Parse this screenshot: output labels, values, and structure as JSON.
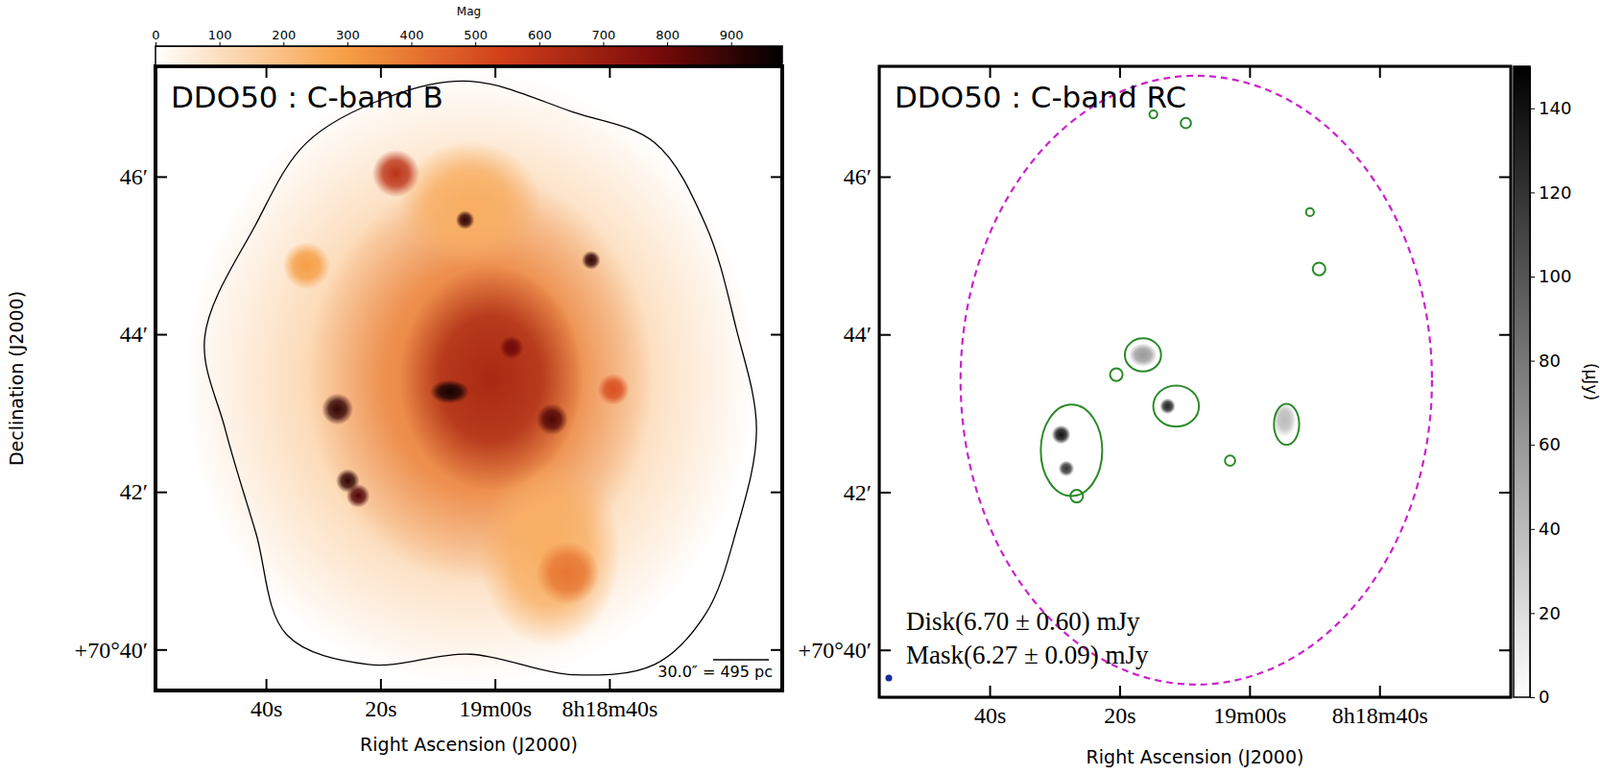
{
  "chart_data": [
    {
      "type": "image",
      "title": "DDO50 : C-band B",
      "x_label": "Right Ascension (J2000)",
      "y_label": "Declination (J2000)",
      "xlim": [
        119.3,
        9.8
      ],
      "xticks": [
        {
          "value": 100,
          "label": "40s"
        },
        {
          "value": 80,
          "label": "20s"
        },
        {
          "value": 60,
          "label": "19m00s"
        },
        {
          "value": 40,
          "label": "8h18m40s"
        }
      ],
      "ylim": [
        39.48,
        47.4
      ],
      "yticks": [
        {
          "value": 46,
          "label": "46′"
        },
        {
          "value": 44,
          "label": "44′"
        },
        {
          "value": 42,
          "label": "42′"
        },
        {
          "value": 40,
          "label": "+70°40′"
        }
      ],
      "colorbar": {
        "label": "Mag",
        "range": [
          0,
          980
        ],
        "ticks": [
          0,
          100,
          200,
          300,
          400,
          500,
          600,
          700,
          800,
          900
        ]
      },
      "sources": {
        "x": [
          64.3,
          62.5,
          64.3,
          50.4,
          60.7,
          67.9,
          87.5,
          85.7,
          83.9,
          65.2,
          43.2,
          50,
          57.1,
          47.3,
          77.3,
          92.9,
          39.3
        ],
        "y": [
          43.44,
          43.44,
          45.65,
          41.23,
          43.44,
          43.27,
          43.05,
          42.14,
          41.95,
          45.45,
          44.94,
          42.92,
          43.83,
          40.97,
          46.04,
          44.87,
          43.3
        ],
        "values": [
          150,
          380,
          250,
          250,
          650,
          950,
          900,
          900,
          850,
          900,
          900,
          850,
          800,
          400,
          600,
          300,
          500
        ],
        "rx": [
          3.64,
          2.2,
          0.9,
          0.9,
          1.17,
          0.25,
          0.2,
          0.15,
          0.15,
          0.12,
          0.12,
          0.2,
          0.15,
          0.4,
          0.3,
          0.3,
          0.2
        ],
        "ry": [
          3.9,
          2.6,
          0.8,
          1.2,
          1.43,
          0.15,
          0.2,
          0.15,
          0.15,
          0.12,
          0.12,
          0.2,
          0.15,
          0.4,
          0.3,
          0.3,
          0.2
        ]
      },
      "contour": {
        "x": [
          64.3,
          46.4,
          32.1,
          23.2,
          17.9,
          14.3,
          17.9,
          23.2,
          32.1,
          46.4,
          64.3,
          82.1,
          96.4,
          101.8,
          107.1,
          110.7,
          101.8,
          92.9,
          78.6
        ],
        "y": [
          47.21,
          46.82,
          46.43,
          45.39,
          44.09,
          42.79,
          41.49,
          40.45,
          39.81,
          39.68,
          39.94,
          39.81,
          40.19,
          41.49,
          42.79,
          43.96,
          45.39,
          46.43,
          47.01
        ]
      },
      "annotations": [
        "30.0″ = 495 pc"
      ]
    },
    {
      "type": "image",
      "title": "DDO50 : C-band RC",
      "x_label": "Right Ascension (J2000)",
      "xlim": [
        117,
        19.8
      ],
      "xticks": [
        {
          "value": 100,
          "label": "40s"
        },
        {
          "value": 80,
          "label": "20s"
        },
        {
          "value": 60,
          "label": "19m00s"
        },
        {
          "value": 40,
          "label": "8h18m40s"
        }
      ],
      "ylim": [
        39.4,
        47.4
      ],
      "yticks": [
        {
          "value": 46,
          "label": "46′"
        },
        {
          "value": 44,
          "label": "44′"
        },
        {
          "value": 42,
          "label": "42′"
        },
        {
          "value": 40,
          "label": "+70°40′"
        }
      ],
      "colorbar": {
        "label": "(μJy)",
        "range": [
          0,
          150
        ],
        "ticks": [
          0,
          20,
          40,
          60,
          80,
          100,
          120,
          140
        ]
      },
      "sources": {
        "x": [
          89,
          88.2,
          72.6,
          76.4,
          54.6
        ],
        "y": [
          42.73,
          42.3,
          43.09,
          43.74,
          42.92
        ],
        "values": [
          140,
          120,
          130,
          60,
          40
        ],
        "rx": [
          0.12,
          0.1,
          0.1,
          0.18,
          0.15
        ],
        "ry": [
          0.12,
          0.1,
          0.1,
          0.15,
          0.22
        ]
      },
      "contours": {
        "x": [
          87.4,
          76.4,
          71.3,
          54.3,
          80.5,
          63,
          86.6,
          49.3,
          50.7,
          69.8,
          74.8
        ],
        "y": [
          42.53,
          43.74,
          43.09,
          42.86,
          43.49,
          42.4,
          41.95,
          44.83,
          45.55,
          46.68,
          46.79
        ],
        "rx": [
          0.39,
          0.23,
          0.29,
          0.16,
          0.08,
          0.065,
          0.08,
          0.08,
          0.05,
          0.065,
          0.05
        ],
        "ry": [
          0.58,
          0.21,
          0.26,
          0.26,
          0.08,
          0.065,
          0.08,
          0.08,
          0.05,
          0.065,
          0.05
        ]
      },
      "disk": {
        "x": 68.2,
        "y": 43.42,
        "rx": 2.99,
        "ry": 3.86
      },
      "annotations": [
        "Disk(6.70 ± 0.60) mJy",
        "Mask(6.27 ± 0.09) mJy"
      ]
    }
  ]
}
